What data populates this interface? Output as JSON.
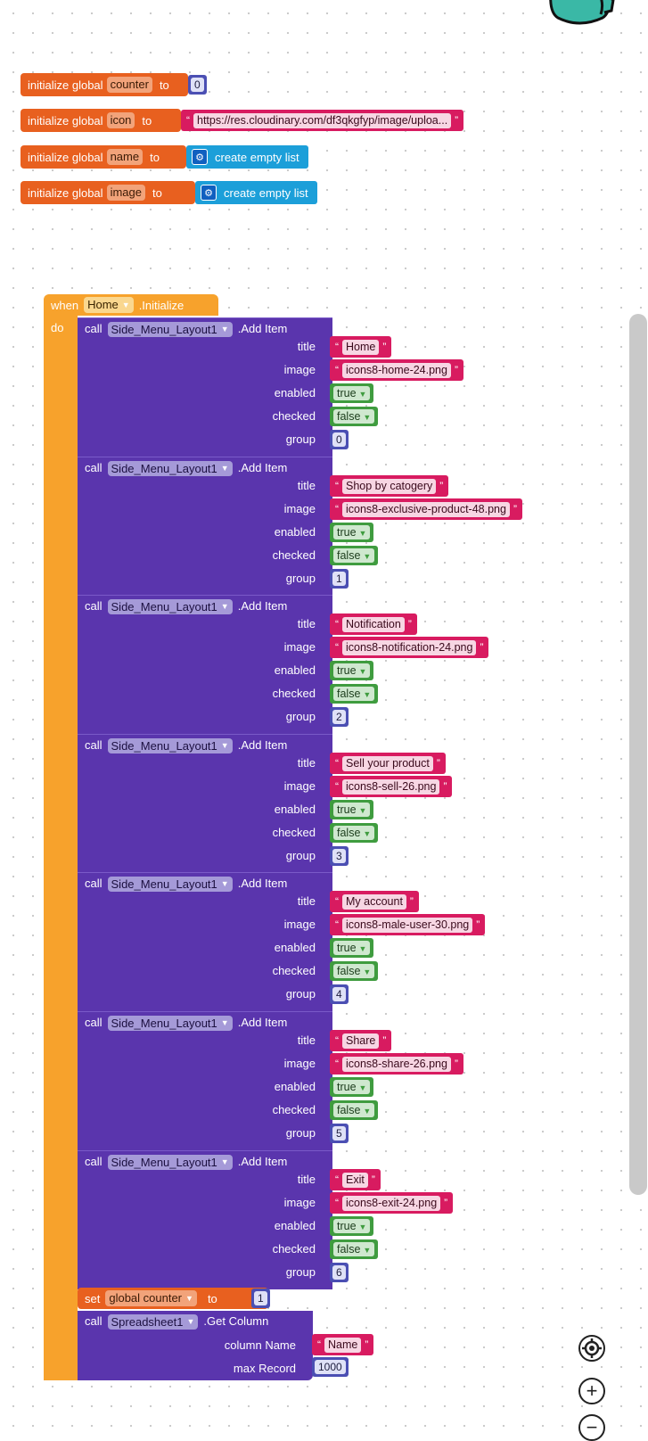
{
  "globals": [
    {
      "prefix": "initialize global",
      "name": "counter",
      "to": "to",
      "value_type": "number",
      "value": "0"
    },
    {
      "prefix": "initialize global",
      "name": "icon",
      "to": "to",
      "value_type": "text",
      "value": "https://res.cloudinary.com/df3qkgfyp/image/uploa..."
    },
    {
      "prefix": "initialize global",
      "name": "name",
      "to": "to",
      "value_type": "list",
      "value": "create empty list"
    },
    {
      "prefix": "initialize global",
      "name": "image",
      "to": "to",
      "value_type": "list",
      "value": "create empty list"
    }
  ],
  "event": {
    "when": "when",
    "component": "Home",
    "event_name": ".Initialize",
    "do": "do"
  },
  "param_labels": {
    "call": "call",
    "method": ".Add Item",
    "title": "title",
    "image": "image",
    "enabled": "enabled",
    "checked": "checked",
    "group": "group"
  },
  "menu_items": [
    {
      "component": "Side_Menu_Layout1",
      "title": "Home",
      "image": "icons8-home-24.png",
      "enabled": "true",
      "checked": "false",
      "group": "0"
    },
    {
      "component": "Side_Menu_Layout1",
      "title": "Shop by catogery",
      "image": "icons8-exclusive-product-48.png",
      "enabled": "true",
      "checked": "false",
      "group": "1"
    },
    {
      "component": "Side_Menu_Layout1",
      "title": "Notification",
      "image": "icons8-notification-24.png",
      "enabled": "true",
      "checked": "false",
      "group": "2"
    },
    {
      "component": "Side_Menu_Layout1",
      "title": "Sell your product",
      "image": "icons8-sell-26.png",
      "enabled": "true",
      "checked": "false",
      "group": "3"
    },
    {
      "component": "Side_Menu_Layout1",
      "title": "My account",
      "image": "icons8-male-user-30.png",
      "enabled": "true",
      "checked": "false",
      "group": "4"
    },
    {
      "component": "Side_Menu_Layout1",
      "title": "Share",
      "image": "icons8-share-26.png",
      "enabled": "true",
      "checked": "false",
      "group": "5"
    },
    {
      "component": "Side_Menu_Layout1",
      "title": "Exit",
      "image": "icons8-exit-24.png",
      "enabled": "true",
      "checked": "false",
      "group": "6"
    }
  ],
  "set_block": {
    "set": "set",
    "variable": "global counter",
    "to": "to",
    "value": "1"
  },
  "get_column": {
    "call": "call",
    "component": "Spreadsheet1",
    "method": ".Get Column",
    "column_name_label": "column Name",
    "column_name_value": "Name",
    "max_record_label": "max Record",
    "max_record_value": "1000"
  },
  "colors": {
    "variable_block": "#e8601f",
    "event_block": "#f7a22c",
    "call_block": "#5a35ad",
    "text_block": "#d81b60",
    "boolean_block": "#3f9c3f",
    "number_block": "#4b4fb3",
    "list_block": "#1c9fd9"
  },
  "icons": {
    "trash": "trash-icon",
    "recenter": "target-icon",
    "zoom_in": "plus-circle-icon",
    "zoom_out": "minus-circle-icon"
  }
}
